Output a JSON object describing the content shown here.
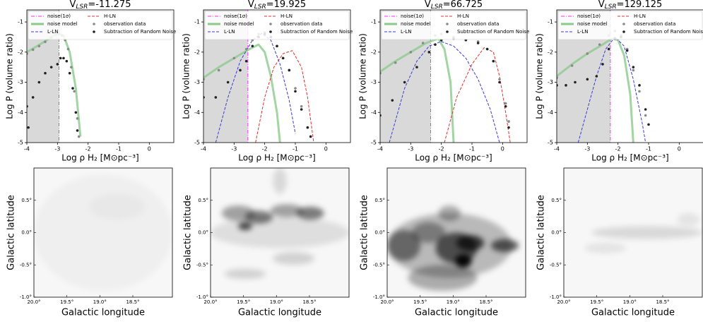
{
  "chart_data": [
    {
      "type": "line",
      "title_parts": [
        "V",
        "LSR",
        "=-11.275"
      ],
      "xlabel": "Log  ρ H₂ [M⊙pc⁻³]",
      "ylabel": "Log P (volume ratio)",
      "xlim": [
        -4,
        0.8
      ],
      "ylim": [
        -5,
        -0.6
      ],
      "xticks": [
        -4,
        -3,
        -2,
        -1,
        0
      ],
      "yticks": [
        -5,
        -4,
        -3,
        -2,
        -1
      ],
      "series": [
        {
          "name": "noise(1σ)",
          "color": "#ff33ff",
          "style": "vline",
          "x": [
            -2.95
          ]
        },
        {
          "name": "noise model",
          "color": "#8cc98c",
          "style": "line",
          "x": [
            -4,
            -3.5,
            -3.2,
            -3,
            -2.8,
            -2.6,
            -2.4,
            -2.25
          ],
          "values": [
            -2.0,
            -1.7,
            -1.5,
            -1.38,
            -1.45,
            -2.0,
            -3.2,
            -4.8
          ]
        },
        {
          "name": "L-LN",
          "color": "#3a3ad8",
          "style": "dashed",
          "x": [],
          "values": []
        },
        {
          "name": "H-LN",
          "color": "#e03030",
          "style": "dashed",
          "x": [],
          "values": []
        },
        {
          "name": "observation data",
          "color": "#8a8a8a",
          "style": "dots",
          "x": [
            -4,
            -3.8,
            -3.6,
            -3.4,
            -3.2,
            -3.05,
            -2.95,
            -2.85,
            -2.75,
            -2.65,
            -2.55,
            -2.45,
            -2.35,
            -2.3
          ],
          "values": [
            -2.05,
            -1.92,
            -1.8,
            -1.66,
            -1.52,
            -1.42,
            -1.4,
            -1.45,
            -1.6,
            -1.9,
            -2.5,
            -3.3,
            -4.2,
            -4.8
          ]
        },
        {
          "name": "Subtraction of Random Noise",
          "color": "#222222",
          "style": "dots",
          "x": [
            -4,
            -3.95,
            -3.8,
            -3.6,
            -3.4,
            -3.2,
            -3.0,
            -2.9,
            -2.8,
            -2.7,
            -2.6,
            -2.5,
            -2.4,
            -2.35
          ],
          "values": [
            -3.8,
            -4.5,
            -3.5,
            -3.0,
            -2.7,
            -2.5,
            -2.4,
            -2.2,
            -2.2,
            -2.3,
            -2.7,
            -3.2,
            -4.0,
            -4.6
          ]
        }
      ]
    },
    {
      "type": "line",
      "title_parts": [
        "V",
        "LSR",
        "=19.925"
      ],
      "xlabel": "Log  ρ H₂ [M⊙pc⁻³]",
      "ylabel": "Log P (volume ratio)",
      "xlim": [
        -4,
        0.8
      ],
      "ylim": [
        -5,
        -0.6
      ],
      "xticks": [
        -4,
        -3,
        -2,
        -1,
        0
      ],
      "yticks": [
        -5,
        -4,
        -3,
        -2,
        -1
      ],
      "series": [
        {
          "name": "noise(1σ)",
          "color": "#ff33ff",
          "style": "vline",
          "x": [
            -2.55
          ]
        },
        {
          "name": "noise model",
          "color": "#8cc98c",
          "style": "line",
          "x": [
            -4,
            -3.5,
            -3,
            -2.5,
            -2.2,
            -2,
            -1.8,
            -1.6,
            -1.5
          ],
          "values": [
            -2.85,
            -2.5,
            -2.2,
            -1.9,
            -1.75,
            -2.0,
            -2.8,
            -4.0,
            -5
          ]
        },
        {
          "name": "L-LN",
          "color": "#3a3ad8",
          "style": "dashed",
          "x": [
            -3.6,
            -3.2,
            -2.8,
            -2.4,
            -2.1,
            -1.8,
            -1.5,
            -1.2,
            -1
          ],
          "values": [
            -5,
            -3.5,
            -2.3,
            -1.6,
            -1.38,
            -1.6,
            -2.4,
            -3.6,
            -4.7
          ]
        },
        {
          "name": "H-LN",
          "color": "#e03030",
          "style": "dashed",
          "x": [
            -2.3,
            -2,
            -1.7,
            -1.4,
            -1.1,
            -0.8,
            -0.6,
            -0.4
          ],
          "values": [
            -5,
            -3.5,
            -2.5,
            -2.05,
            -1.95,
            -2.5,
            -3.5,
            -5
          ]
        },
        {
          "name": "observation data",
          "color": "#8a8a8a",
          "style": "dots",
          "x": [
            -4,
            -3.5,
            -3,
            -2.6,
            -2.4,
            -2.2,
            -2,
            -1.8,
            -1.6,
            -1.4,
            -1.2,
            -1,
            -0.8,
            -0.6
          ],
          "values": [
            -2.9,
            -2.6,
            -2.2,
            -1.9,
            -1.6,
            -1.4,
            -1.35,
            -1.5,
            -1.8,
            -2.2,
            -2.6,
            -3.2,
            -3.8,
            -4.5
          ]
        },
        {
          "name": "Subtraction of Random Noise",
          "color": "#222222",
          "style": "dots",
          "x": [
            -4,
            -3.6,
            -3.2,
            -2.8,
            -2.6,
            -2.4,
            -2.2,
            -2,
            -1.8,
            -1.6,
            -1.4,
            -1.2,
            -1,
            -0.8,
            -0.6,
            -0.5
          ],
          "values": [
            -3.5,
            -3.5,
            -3.0,
            -2.6,
            -2.3,
            -1.8,
            -1.5,
            -1.4,
            -1.5,
            -1.8,
            -2.2,
            -2.6,
            -3.3,
            -3.9,
            -4.5,
            -4.8
          ]
        }
      ]
    },
    {
      "type": "line",
      "title_parts": [
        "V",
        "LSR",
        "=66.725"
      ],
      "xlabel": "Log  ρ H₂ [M⊙pc⁻³]",
      "ylabel": "Log P (volume ratio)",
      "xlim": [
        -4,
        0.8
      ],
      "ylim": [
        -5,
        -0.6
      ],
      "xticks": [
        -4,
        -3,
        -2,
        -1,
        0
      ],
      "yticks": [
        -5,
        -4,
        -3,
        -2,
        -1
      ],
      "series": [
        {
          "name": "noise(1σ)",
          "color": "#ff33ff",
          "style": "vline",
          "x": [
            -2.35
          ]
        },
        {
          "name": "noise model",
          "color": "#8cc98c",
          "style": "line",
          "x": [
            -4,
            -3.5,
            -3,
            -2.5,
            -2.1,
            -1.9,
            -1.7,
            -1.6
          ],
          "values": [
            -2.65,
            -2.3,
            -2.0,
            -1.7,
            -1.55,
            -1.9,
            -3.0,
            -5
          ]
        },
        {
          "name": "L-LN",
          "color": "#3a3ad8",
          "style": "dashed",
          "x": [
            -3.7,
            -3.2,
            -2.8,
            -2.4,
            -2,
            -1.6,
            -1.2,
            -0.8,
            -0.4,
            -0.1
          ],
          "values": [
            -5,
            -3.2,
            -2.3,
            -1.8,
            -1.65,
            -1.8,
            -2.2,
            -2.9,
            -3.9,
            -5
          ]
        },
        {
          "name": "H-LN",
          "color": "#e03030",
          "style": "dashed",
          "x": [
            -1.9,
            -1.5,
            -1,
            -0.6,
            -0.3,
            -0.1,
            0.1,
            0.25
          ],
          "values": [
            -5,
            -3.5,
            -2.4,
            -1.85,
            -2.0,
            -2.8,
            -4,
            -5
          ]
        },
        {
          "name": "observation data",
          "color": "#8a8a8a",
          "style": "dots",
          "x": [
            -4,
            -3.5,
            -3,
            -2.6,
            -2.2,
            -2,
            -1.6,
            -1.2,
            -0.8,
            -0.5,
            -0.3,
            -0.1,
            0.1,
            0.2
          ],
          "values": [
            -2.7,
            -2.35,
            -2.0,
            -1.7,
            -1.45,
            -1.4,
            -1.5,
            -1.6,
            -1.65,
            -1.9,
            -2.3,
            -2.9,
            -3.7,
            -4.3
          ]
        },
        {
          "name": "Subtraction of Random Noise",
          "color": "#222222",
          "style": "dots",
          "x": [
            -4,
            -3.6,
            -3.2,
            -2.8,
            -2.4,
            -2.2,
            -2,
            -1.6,
            -1.2,
            -0.8,
            -0.5,
            -0.3,
            -0.1,
            0.1,
            0.2
          ],
          "values": [
            -4.1,
            -3.6,
            -3.0,
            -2.5,
            -2.0,
            -1.75,
            -1.6,
            -1.55,
            -1.6,
            -1.7,
            -1.9,
            -2.3,
            -3.0,
            -3.8,
            -4.5
          ]
        }
      ]
    },
    {
      "type": "line",
      "title_parts": [
        "V",
        "LSR",
        "=129.125"
      ],
      "xlabel": "Log  ρ H₂ [M⊙pc⁻³]",
      "ylabel": "Log P (volume ratio)",
      "xlim": [
        -4,
        0.8
      ],
      "ylim": [
        -5,
        -0.6
      ],
      "xticks": [
        -4,
        -3,
        -2,
        -1,
        0
      ],
      "yticks": [
        -5,
        -4,
        -3,
        -2,
        -1
      ],
      "series": [
        {
          "name": "noise(1σ)",
          "color": "#ff33ff",
          "style": "vline",
          "x": [
            -2.25
          ]
        },
        {
          "name": "noise model",
          "color": "#8cc98c",
          "style": "line",
          "x": [
            -4,
            -3.5,
            -3,
            -2.5,
            -2.2,
            -2,
            -1.8,
            -1.6,
            -1.5
          ],
          "values": [
            -2.8,
            -2.4,
            -2.05,
            -1.75,
            -1.55,
            -1.6,
            -2.1,
            -3.4,
            -5
          ]
        },
        {
          "name": "L-LN",
          "color": "#3a3ad8",
          "style": "dashed",
          "x": [
            -3.3,
            -3,
            -2.7,
            -2.4,
            -2.1,
            -1.8,
            -1.5,
            -1.2,
            -1.1
          ],
          "values": [
            -5,
            -3.9,
            -2.8,
            -1.9,
            -1.5,
            -1.8,
            -2.9,
            -4.4,
            -5
          ]
        },
        {
          "name": "H-LN",
          "color": "#e03030",
          "style": "dashed",
          "x": [],
          "values": []
        },
        {
          "name": "observation data",
          "color": "#8a8a8a",
          "style": "dots",
          "x": [
            -4,
            -3.5,
            -3,
            -2.6,
            -2.3,
            -2.1,
            -1.9,
            -1.7,
            -1.5,
            -1.3,
            -1.1
          ],
          "values": [
            -2.85,
            -2.45,
            -2.05,
            -1.75,
            -1.45,
            -1.3,
            -1.45,
            -1.9,
            -2.6,
            -3.3,
            -4.1
          ]
        },
        {
          "name": "Subtraction of Random Noise",
          "color": "#222222",
          "style": "dots",
          "x": [
            -4,
            -3.7,
            -3.4,
            -3,
            -2.7,
            -2.5,
            -2.3,
            -2.1,
            -1.9,
            -1.7,
            -1.5,
            -1.3,
            -1.1,
            -1
          ],
          "values": [
            -3.1,
            -3.1,
            -3.0,
            -2.9,
            -2.8,
            -2.4,
            -1.9,
            -1.55,
            -1.5,
            -1.95,
            -2.5,
            -3.1,
            -3.9,
            -4.4
          ]
        }
      ]
    },
    {
      "type": "image",
      "xlabel": "Galactic longitude",
      "ylabel": "Galactic latitude",
      "xlim": [
        20,
        17.9
      ],
      "ylim": [
        -1,
        1
      ],
      "xticks": [
        {
          "value": 20,
          "label": "20.0°"
        },
        {
          "value": 19.5,
          "label": "19.5°"
        },
        {
          "value": 19,
          "label": "19.0°"
        },
        {
          "value": 18.5,
          "label": "18.5°"
        }
      ],
      "yticks": [
        {
          "value": -1,
          "label": "-1.0°"
        },
        {
          "value": -0.5,
          "label": "-0.5°"
        },
        {
          "value": 0,
          "label": "0.0°"
        },
        {
          "value": 0.5,
          "label": "0.5°"
        }
      ]
    },
    {
      "type": "image",
      "xlabel": "Galactic longitude",
      "ylabel": "Galactic latitude",
      "xlim": [
        20,
        17.9
      ],
      "ylim": [
        -1,
        1
      ],
      "xticks": [
        {
          "value": 20,
          "label": "20.0°"
        },
        {
          "value": 19.5,
          "label": "19.5°"
        },
        {
          "value": 19,
          "label": "19.0°"
        },
        {
          "value": 18.5,
          "label": "18.5°"
        }
      ],
      "yticks": [
        {
          "value": -1,
          "label": "-1.0°"
        },
        {
          "value": -0.5,
          "label": "-0.5°"
        },
        {
          "value": 0,
          "label": "0.0°"
        },
        {
          "value": 0.5,
          "label": "0.5°"
        }
      ]
    },
    {
      "type": "image",
      "xlabel": "Galactic longitude",
      "ylabel": "Galactic latitude",
      "xlim": [
        20,
        17.9
      ],
      "ylim": [
        -1,
        1
      ],
      "xticks": [
        {
          "value": 20,
          "label": "20.0°"
        },
        {
          "value": 19.5,
          "label": "19.5°"
        },
        {
          "value": 19,
          "label": "19.0°"
        },
        {
          "value": 18.5,
          "label": "18.5°"
        }
      ],
      "yticks": [
        {
          "value": -1,
          "label": "-1.0°"
        },
        {
          "value": -0.5,
          "label": "-0.5°"
        },
        {
          "value": 0,
          "label": "0.0°"
        },
        {
          "value": 0.5,
          "label": "0.5°"
        }
      ]
    },
    {
      "type": "image",
      "xlabel": "Galactic longitude",
      "ylabel": "Galactic latitude",
      "xlim": [
        20,
        17.9
      ],
      "ylim": [
        -1,
        1
      ],
      "xticks": [
        {
          "value": 20,
          "label": "20.0°"
        },
        {
          "value": 19.5,
          "label": "19.5°"
        },
        {
          "value": 19,
          "label": "19.0°"
        },
        {
          "value": 18.5,
          "label": "18.5°"
        }
      ],
      "yticks": [
        {
          "value": -1,
          "label": "-1.0°"
        },
        {
          "value": -0.5,
          "label": "-0.5°"
        },
        {
          "value": 0,
          "label": "0.0°"
        },
        {
          "value": 0.5,
          "label": "0.5°"
        }
      ]
    }
  ]
}
